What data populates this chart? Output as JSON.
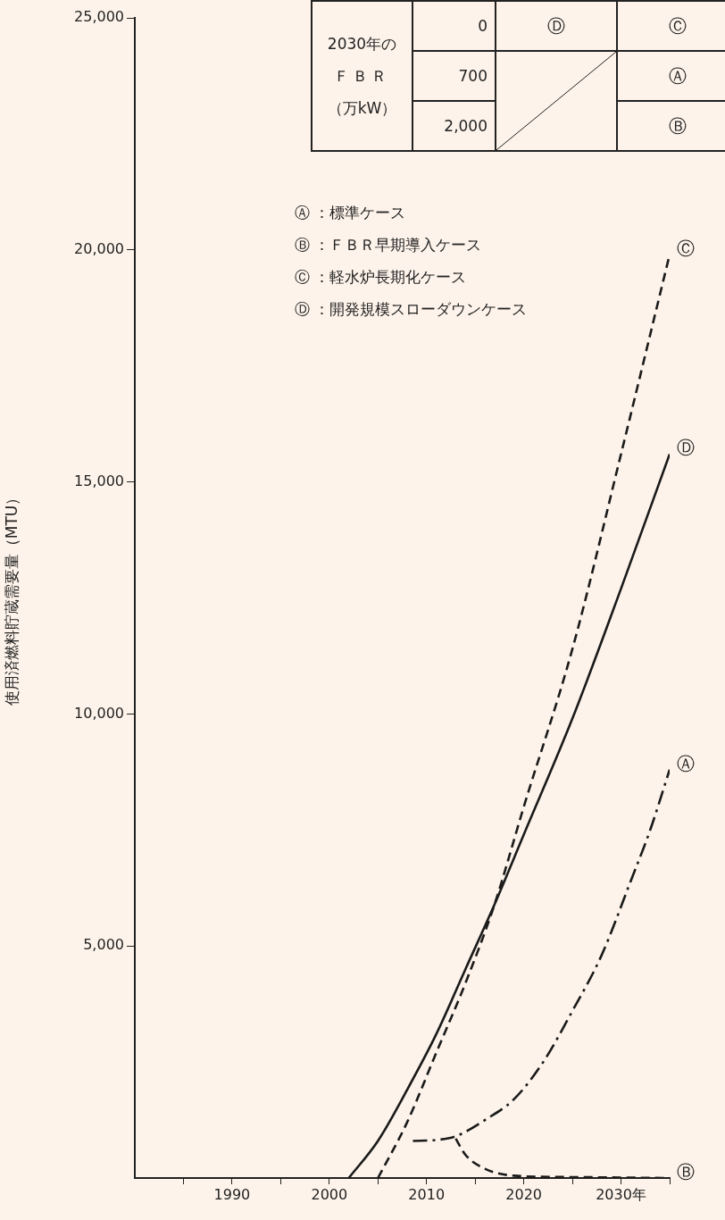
{
  "chart_data": {
    "type": "line",
    "ylabel": "使用済燃料貯蔵需要量（MTU）",
    "xlim": [
      1980,
      2035
    ],
    "ylim": [
      0,
      25000
    ],
    "xticks": [
      {
        "value": 1985,
        "label": null
      },
      1990,
      {
        "value": 1995,
        "label": null
      },
      2000,
      {
        "value": 2005,
        "label": null
      },
      2010,
      {
        "value": 2015,
        "label": null
      },
      2020,
      {
        "value": 2025,
        "label": null
      },
      {
        "value": 2030,
        "label": "2030年"
      },
      {
        "value": 2035,
        "label": null
      }
    ],
    "yticks": [
      {
        "value": 5000,
        "label": "5,000"
      },
      {
        "value": 10000,
        "label": "10,000"
      },
      {
        "value": 15000,
        "label": "15,000"
      },
      {
        "value": 20000,
        "label": "20,000"
      },
      {
        "value": 25000,
        "label": "25,000"
      }
    ],
    "grid": false,
    "marker": "none",
    "legend": "right",
    "series": [
      {
        "name": "Ⓐ",
        "color": "#1a1a1a",
        "line_style": "dashdot",
        "x": [
          2008.6,
          2011,
          2013,
          2016,
          2019,
          2022,
          2025,
          2028,
          2031,
          2033,
          2035
        ],
        "values": [
          800,
          820,
          900,
          1250,
          1700,
          2500,
          3600,
          4800,
          6400,
          7500,
          8800
        ]
      },
      {
        "name": "Ⓑ",
        "color": "#1a1a1a",
        "line_style": "dashed",
        "x": [
          2013,
          2014,
          2016,
          2019,
          2025,
          2035
        ],
        "values": [
          850,
          500,
          200,
          50,
          20,
          0
        ]
      },
      {
        "name": "Ⓒ",
        "color": "#1a1a1a",
        "line_style": "dashed",
        "x": [
          2005,
          2008,
          2011,
          2014,
          2017,
          2020,
          2025,
          2030,
          2035
        ],
        "values": [
          0,
          1200,
          2700,
          4200,
          5900,
          8000,
          11400,
          15600,
          19900
        ]
      },
      {
        "name": "Ⓓ",
        "color": "#1a1a1a",
        "line_style": "solid",
        "x": [
          2002,
          2005,
          2008,
          2011,
          2014,
          2017,
          2020,
          2025,
          2030,
          2035
        ],
        "values": [
          0,
          800,
          1900,
          3100,
          4500,
          5900,
          7400,
          9900,
          12700,
          15600
        ]
      }
    ],
    "annotations": [
      "2030年の",
      "ＦＢＲ",
      "（万kW）",
      "0",
      "700",
      "2,000",
      "Ⓓ",
      "Ⓒ",
      "Ⓐ",
      "Ⓑ",
      "Ⓐ ：標準ケース",
      "Ⓑ ：ＦＢＲ早期導入ケース",
      "Ⓒ ：軽水炉長期化ケース",
      "Ⓓ ：開発規模スローダウンケース"
    ]
  }
}
